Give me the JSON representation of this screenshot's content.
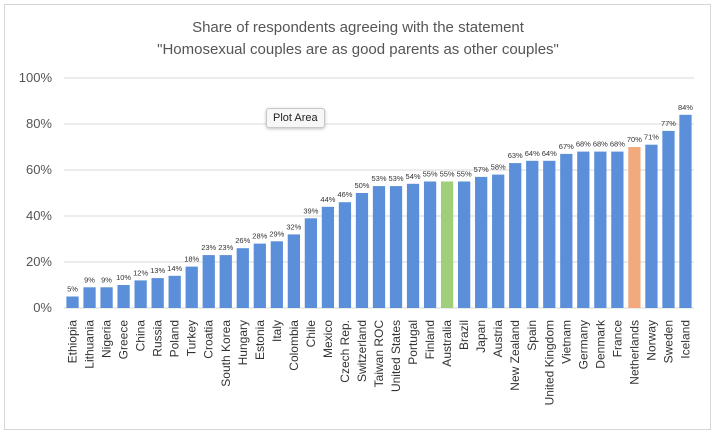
{
  "tooltip": "Plot Area",
  "chart_data": {
    "type": "bar",
    "title": [
      "Share of respondents agreeing with the statement",
      "\"Homosexual couples are as good parents as other couples\""
    ],
    "xlabel": "",
    "ylabel": "",
    "ylim": [
      0,
      100
    ],
    "yticks": [
      "0%",
      "20%",
      "40%",
      "60%",
      "80%",
      "100%"
    ],
    "grid": true,
    "legend": "none",
    "categories": [
      "Ethiopia",
      "Lithuania",
      "Nigeria",
      "Greece",
      "China",
      "Russia",
      "Poland",
      "Turkey",
      "Croatia",
      "South Korea",
      "Hungary",
      "Estonia",
      "Italy",
      "Colombia",
      "Chile",
      "Mexico",
      "Czech Rep.",
      "Switzerland",
      "Taiwan ROC",
      "United States",
      "Portugal",
      "Finland",
      "Australia",
      "Brazil",
      "Japan",
      "Austria",
      "New Zealand",
      "Spain",
      "United Kingdom",
      "Vietnam",
      "Germany",
      "Denmark",
      "France",
      "Netherlands",
      "Norway",
      "Sweden",
      "Iceland"
    ],
    "values": [
      5,
      9,
      9,
      10,
      12,
      13,
      14,
      18,
      23,
      23,
      26,
      28,
      29,
      32,
      39,
      44,
      46,
      50,
      53,
      53,
      54,
      55,
      55,
      55,
      57,
      58,
      63,
      64,
      64,
      67,
      68,
      68,
      68,
      70,
      71,
      77,
      84
    ],
    "labels": [
      "5%",
      "9%",
      "9%",
      "10%",
      "12%",
      "13%",
      "14%",
      "18%",
      "23%",
      "23%",
      "26%",
      "28%",
      "29%",
      "32%",
      "39%",
      "44%",
      "46%",
      "50%",
      "53%",
      "53%",
      "54%",
      "55%",
      "55%",
      "55%",
      "57%",
      "58%",
      "63%",
      "64%",
      "64%",
      "67%",
      "68%",
      "68%",
      "68%",
      "70%",
      "71%",
      "77%",
      "84%"
    ],
    "colors": {
      "default": "#5b8fd9",
      "highlights": {
        "Australia": "#9fcf7b",
        "Netherlands": "#f2aa7c"
      },
      "grid": "#d9d9d9"
    }
  }
}
